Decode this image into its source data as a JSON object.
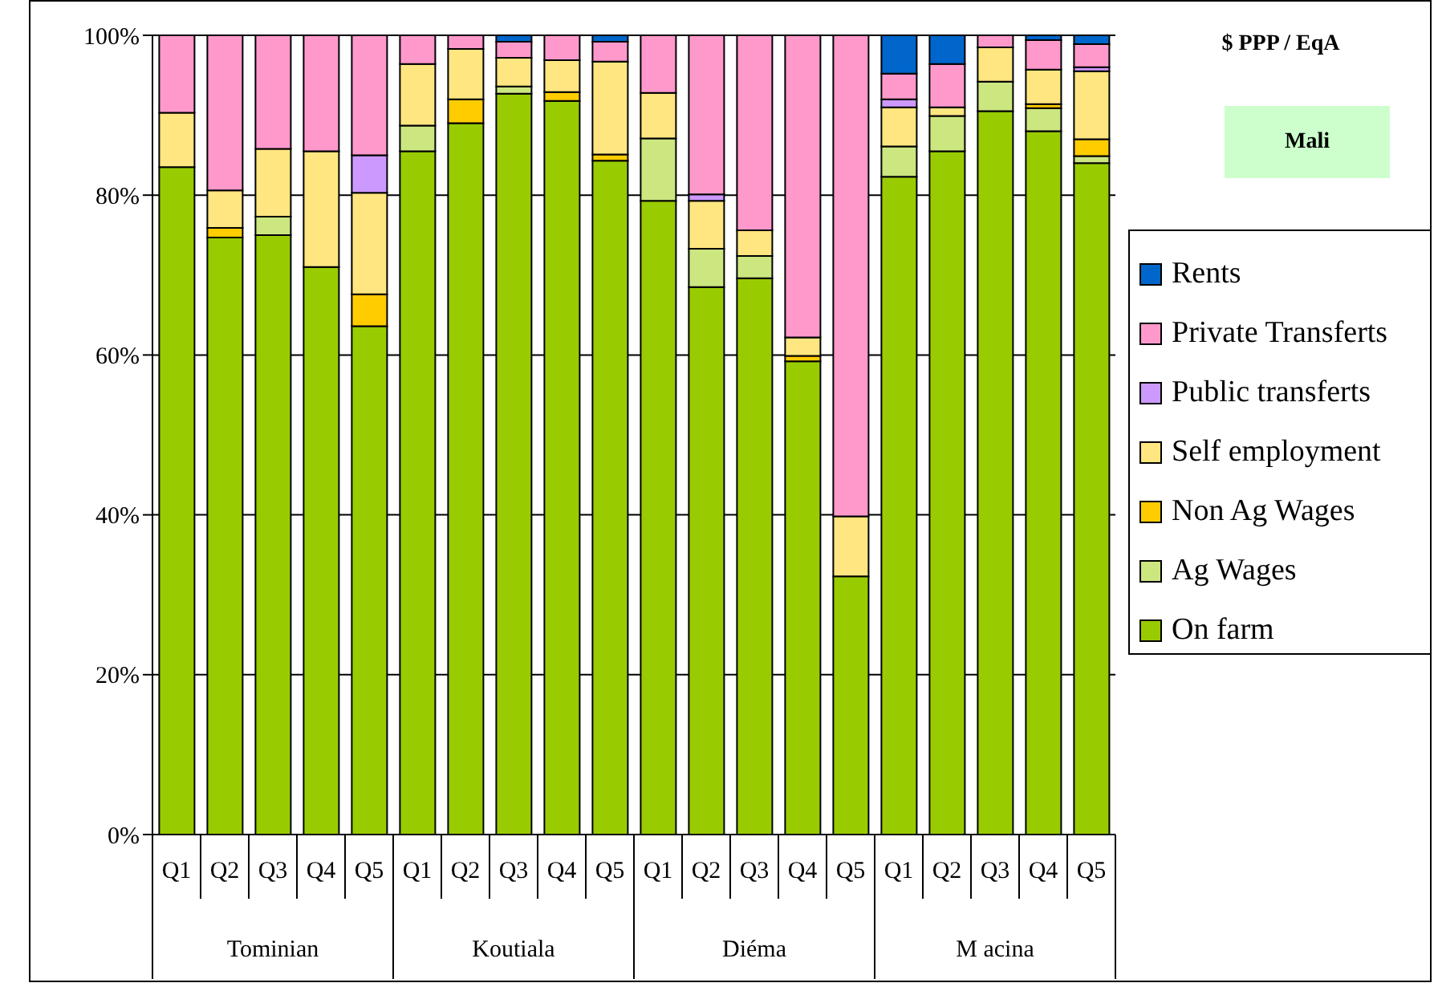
{
  "chart_data": {
    "type": "bar",
    "stacked": true,
    "title": "$ PPP / EqA",
    "subtitle": "Mali",
    "categories": [
      "Q1",
      "Q2",
      "Q3",
      "Q4",
      "Q5",
      "Q1",
      "Q2",
      "Q3",
      "Q4",
      "Q5",
      "Q1",
      "Q2",
      "Q3",
      "Q4",
      "Q5",
      "Q1",
      "Q2",
      "Q3",
      "Q4",
      "Q5"
    ],
    "annotations": [
      "Tominian",
      "Koutiala",
      "Diéma",
      "M acina"
    ],
    "series": [
      {
        "name": "On farm",
        "color": "#99cc00",
        "values": [
          83.5,
          74.7,
          75.0,
          71.0,
          63.6,
          85.5,
          89.0,
          92.7,
          91.8,
          84.3,
          79.3,
          68.5,
          69.6,
          59.2,
          32.3,
          82.3,
          85.5,
          90.5,
          88.0,
          84.0
        ]
      },
      {
        "name": "Ag Wages",
        "color": "#cce680",
        "values": [
          0,
          0,
          2.3,
          0,
          0,
          3.2,
          0,
          0.9,
          0,
          0,
          7.8,
          4.8,
          2.8,
          0,
          0,
          3.8,
          4.4,
          3.7,
          2.9,
          0.9
        ]
      },
      {
        "name": "Non Ag Wages",
        "color": "#ffcc00",
        "values": [
          0,
          1.2,
          0,
          0,
          4.0,
          0,
          3.0,
          0,
          1.1,
          0.8,
          0,
          0,
          0,
          0.7,
          0,
          0,
          0,
          0,
          0.5,
          2.1
        ]
      },
      {
        "name": "Self employment",
        "color": "#ffe680",
        "values": [
          6.8,
          4.7,
          8.5,
          14.5,
          12.7,
          7.7,
          6.3,
          3.6,
          4.0,
          11.6,
          5.7,
          6.0,
          3.2,
          2.3,
          7.5,
          4.9,
          1.1,
          4.3,
          4.3,
          8.5
        ]
      },
      {
        "name": "Public transferts",
        "color": "#cc99ff",
        "values": [
          0,
          0,
          0,
          0,
          4.7,
          0,
          0,
          0,
          0,
          0,
          0,
          0.8,
          0,
          0,
          0,
          1.0,
          0,
          0,
          0,
          0.5
        ]
      },
      {
        "name": "Private Transferts",
        "color": "#ff99cc",
        "values": [
          9.7,
          19.4,
          14.2,
          14.5,
          15.0,
          3.6,
          1.7,
          2.0,
          3.1,
          2.5,
          7.2,
          19.9,
          24.4,
          37.8,
          60.2,
          3.2,
          5.4,
          1.5,
          3.7,
          2.9
        ]
      },
      {
        "name": "Rents",
        "color": "#0066cc",
        "values": [
          0,
          0,
          0,
          0,
          0,
          0,
          0,
          0.8,
          0,
          0.8,
          0,
          0,
          0,
          0,
          0,
          4.8,
          3.6,
          0,
          0.6,
          1.1
        ]
      }
    ],
    "ylim": [
      0,
      100
    ],
    "yticks": [
      {
        "value": 0,
        "label": "0%"
      },
      {
        "value": 20,
        "label": "20%"
      },
      {
        "value": 40,
        "label": "40%"
      },
      {
        "value": 60,
        "label": "60%"
      },
      {
        "value": 80,
        "label": "80%"
      },
      {
        "value": 100,
        "label": "100%"
      }
    ],
    "grid": "y",
    "legend": "right"
  }
}
